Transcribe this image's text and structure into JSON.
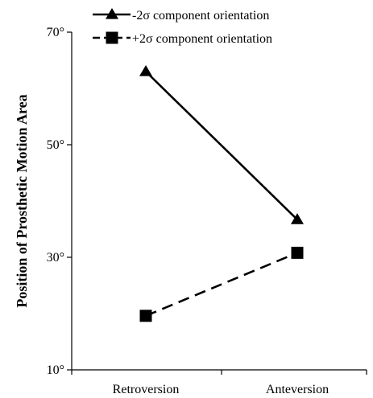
{
  "chart_data": {
    "type": "line",
    "title": "",
    "xlabel": "",
    "ylabel": "Position of Prosthetic Motion Area",
    "categories": [
      "Retroversion",
      "Anteversion"
    ],
    "ylim": [
      10,
      70
    ],
    "yticks": [
      10,
      30,
      50,
      70
    ],
    "ytick_labels": [
      "10°",
      "30°",
      "50°",
      "70°"
    ],
    "grid": false,
    "legend_position": "top",
    "series": [
      {
        "name": "-2σ component orientation",
        "values": [
          63,
          36.7
        ],
        "marker": "triangle",
        "line_style": "solid",
        "color": "#000000"
      },
      {
        "name": "+2σ component orientation",
        "values": [
          19.6,
          30.8
        ],
        "marker": "square",
        "line_style": "dashed",
        "color": "#000000"
      }
    ]
  }
}
